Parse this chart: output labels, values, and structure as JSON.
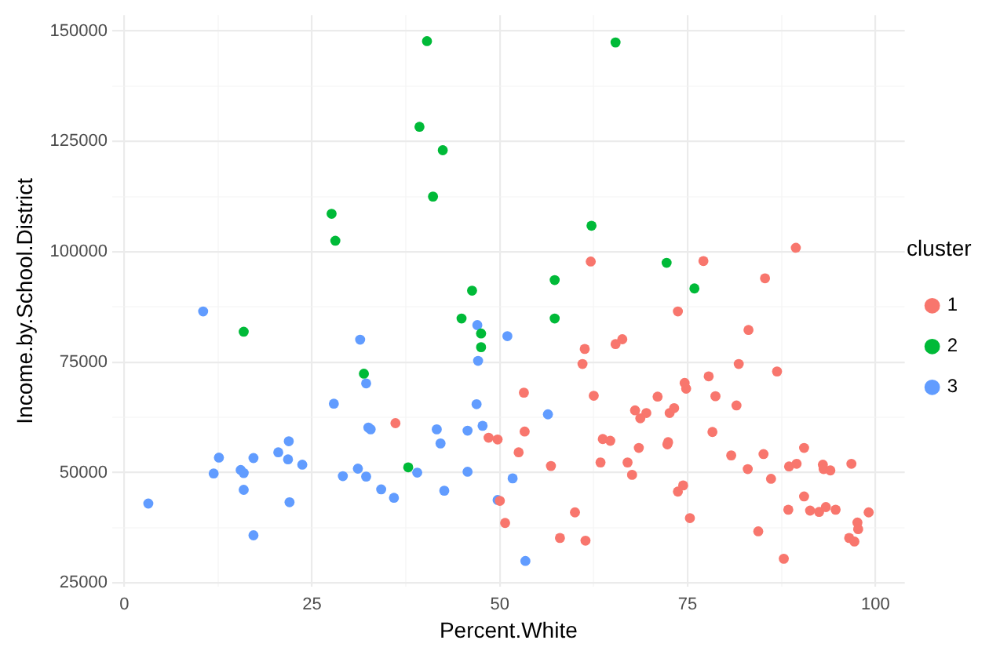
{
  "chart_data": {
    "type": "scatter",
    "xlabel": "Percent.White",
    "ylabel": "Income.by.School.District",
    "legend_title": "cluster",
    "legend": "right",
    "grid": true,
    "marker": "circle",
    "xlim": [
      -1.6,
      103.9
    ],
    "ylim": [
      24100,
      153600
    ],
    "xticks": [
      0,
      {
        "value": 12.5,
        "label": null
      },
      25,
      {
        "value": 37.5,
        "label": null
      },
      50,
      {
        "value": 62.5,
        "label": null
      },
      75,
      {
        "value": 87.5,
        "label": null
      },
      100
    ],
    "yticks": [
      25000,
      {
        "value": 37500,
        "label": null
      },
      50000,
      {
        "value": 62500,
        "label": null
      },
      75000,
      {
        "value": 87500,
        "label": null
      },
      100000,
      {
        "value": 112500,
        "label": null
      },
      125000,
      {
        "value": 137500,
        "label": null
      },
      150000
    ],
    "series": [
      {
        "name": "1",
        "color": "#f8766d",
        "x": [
          62.1,
          77.1,
          89.4,
          85.3,
          73.7,
          36.1,
          83.1,
          61.3,
          65.4,
          66.3,
          61.0,
          81.8,
          77.8,
          86.9,
          53.2,
          62.5,
          71.0,
          74.6,
          74.8,
          78.7,
          81.5,
          68.0,
          69.5,
          68.7,
          72.6,
          73.2,
          53.3,
          48.5,
          49.7,
          63.7,
          64.7,
          78.3,
          68.5,
          72.3,
          72.4,
          52.5,
          63.4,
          67.0,
          80.8,
          85.1,
          90.5,
          56.8,
          67.6,
          83.0,
          86.1,
          88.5,
          89.5,
          93.0,
          93.1,
          94.0,
          96.8,
          74.4,
          73.7,
          50.0,
          90.5,
          60.0,
          88.4,
          91.3,
          92.5,
          93.4,
          94.7,
          99.1,
          75.3,
          50.7,
          84.4,
          97.6,
          97.7,
          58.0,
          61.4,
          96.5,
          97.2,
          87.8
        ],
        "values": [
          97800,
          97900,
          100900,
          94000,
          86500,
          61200,
          82300,
          78000,
          79100,
          80200,
          74600,
          74600,
          71800,
          72900,
          68100,
          67400,
          67200,
          70300,
          69000,
          67300,
          65200,
          64100,
          63500,
          62300,
          63500,
          64600,
          59300,
          57900,
          57500,
          57600,
          57200,
          59200,
          55600,
          56400,
          56900,
          54600,
          52300,
          52300,
          53900,
          54200,
          55600,
          51500,
          49500,
          50800,
          48600,
          51400,
          52000,
          51800,
          50800,
          50500,
          52000,
          47100,
          45700,
          43600,
          44600,
          41000,
          41600,
          41400,
          41100,
          42200,
          41600,
          41000,
          39700,
          38600,
          36700,
          38700,
          37200,
          35200,
          34600,
          35200,
          34400,
          30500
        ]
      },
      {
        "name": "2",
        "color": "#00ba38",
        "x": [
          40.3,
          39.3,
          42.4,
          41.1,
          27.6,
          28.1,
          46.3,
          65.4,
          62.2,
          72.2,
          57.3,
          75.9,
          15.9,
          44.9,
          47.5,
          47.5,
          31.9,
          37.8,
          57.3
        ],
        "values": [
          147700,
          128300,
          123000,
          112500,
          108600,
          102500,
          91200,
          147400,
          105900,
          97500,
          93600,
          91700,
          81900,
          84900,
          81500,
          78400,
          72400,
          51200,
          84900
        ]
      },
      {
        "name": "3",
        "color": "#619cff",
        "x": [
          10.5,
          31.4,
          47.0,
          47.1,
          32.2,
          27.9,
          46.9,
          47.7,
          32.5,
          32.8,
          41.6,
          42.1,
          45.7,
          21.9,
          20.5,
          21.8,
          12.6,
          17.2,
          23.7,
          15.5,
          15.9,
          11.9,
          31.1,
          29.1,
          32.2,
          39.0,
          45.7,
          15.9,
          34.2,
          22.0,
          35.9,
          42.6,
          3.2,
          17.2,
          51.0,
          56.4,
          51.7,
          49.7,
          53.4
        ],
        "values": [
          86500,
          80100,
          83400,
          75300,
          70200,
          65600,
          65500,
          60600,
          60200,
          59800,
          59800,
          56600,
          59500,
          57100,
          54600,
          53000,
          53400,
          53300,
          51800,
          50600,
          49900,
          49800,
          50900,
          49200,
          49100,
          50000,
          50200,
          46100,
          46200,
          43300,
          44300,
          45900,
          43000,
          35800,
          80900,
          63200,
          48700,
          43800,
          30000
        ]
      }
    ]
  }
}
